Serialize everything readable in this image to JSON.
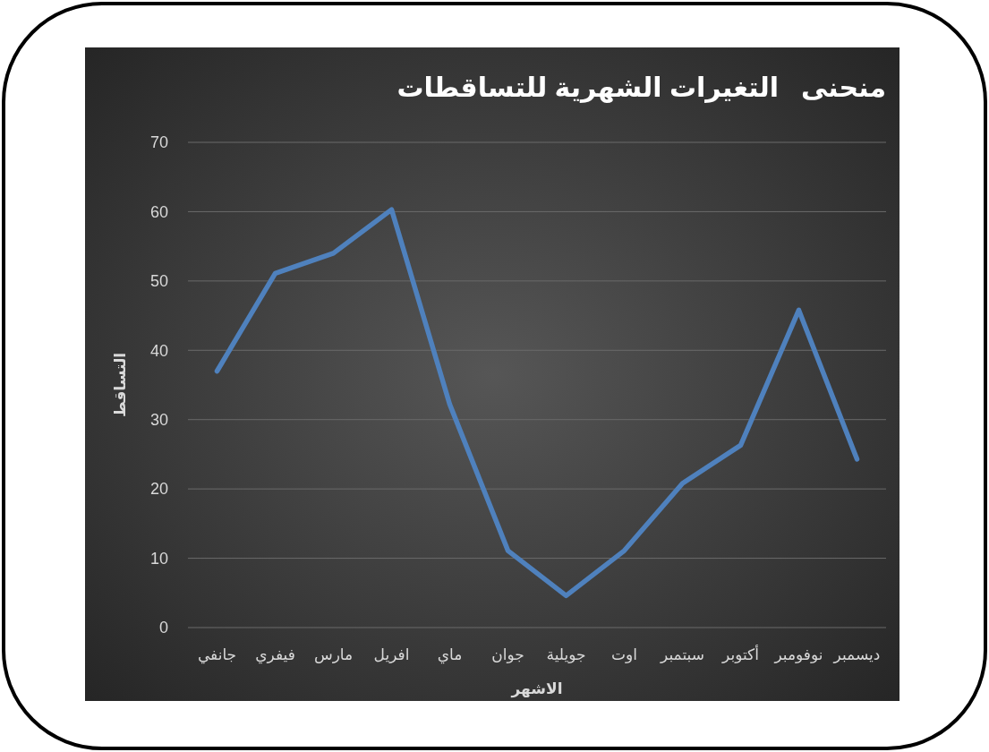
{
  "chart_data": {
    "type": "line",
    "title": "منحنى   التغيرات الشهرية للتساقطات",
    "xlabel": "الاشهر",
    "ylabel": "التساقط",
    "categories": [
      "جانفي",
      "فيفري",
      "مارس",
      "افريل",
      "ماي",
      "جوان",
      "جويلية",
      "اوت",
      "سبتمبر",
      "أكتوبر",
      "نوفومبر",
      "ديسمبر"
    ],
    "series": [
      {
        "color": "#4f81bd",
        "values": [
          37,
          51.1,
          54,
          60.3,
          32.2,
          11.1,
          4.6,
          11.1,
          20.8,
          26.3,
          45.8,
          24.3
        ]
      }
    ],
    "ylim": [
      0,
      70
    ],
    "yticks": [
      0,
      10,
      20,
      30,
      40,
      50,
      60,
      70
    ],
    "grid": "y",
    "marker": "none",
    "line_style": "solid"
  }
}
